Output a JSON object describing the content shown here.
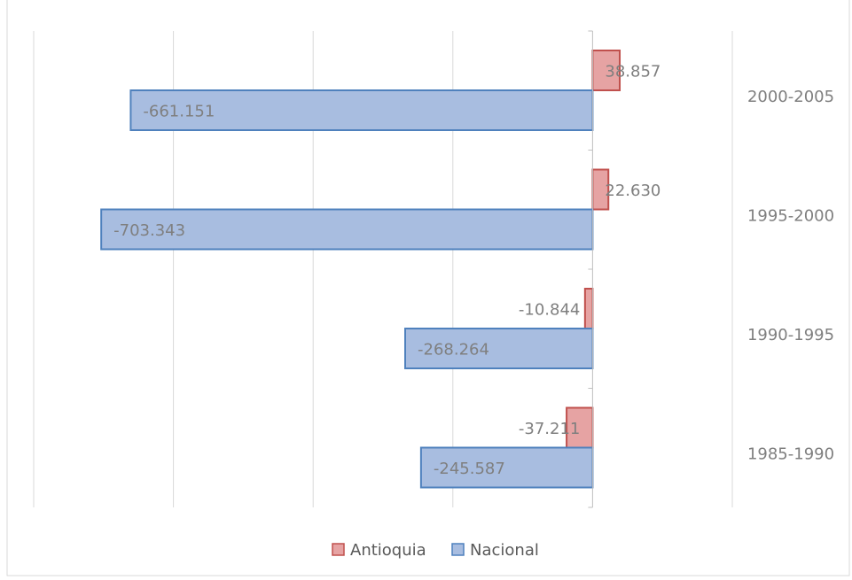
{
  "chart_data": {
    "type": "bar",
    "orientation": "horizontal",
    "title": "",
    "categories": [
      "2000-2005",
      "1995-2000",
      "1990-1995",
      "1985-1990"
    ],
    "series": [
      {
        "name": "Antioquia",
        "color": "#e6a3a3",
        "border": "#c0504d",
        "values": [
          38857,
          22630,
          -10844,
          -37211
        ],
        "labels": [
          "38.857",
          "22.630",
          "-10.844",
          "-37.211"
        ]
      },
      {
        "name": "Nacional",
        "color": "#a8bde0",
        "border": "#4f81bd",
        "values": [
          -661151,
          -703343,
          -268264,
          -245587
        ],
        "labels": [
          "-661.151",
          "-703.343",
          "-268.264",
          "-245.587"
        ]
      }
    ],
    "xlim": [
      -800000,
      200000
    ],
    "grid": true,
    "legend": "bottom"
  }
}
